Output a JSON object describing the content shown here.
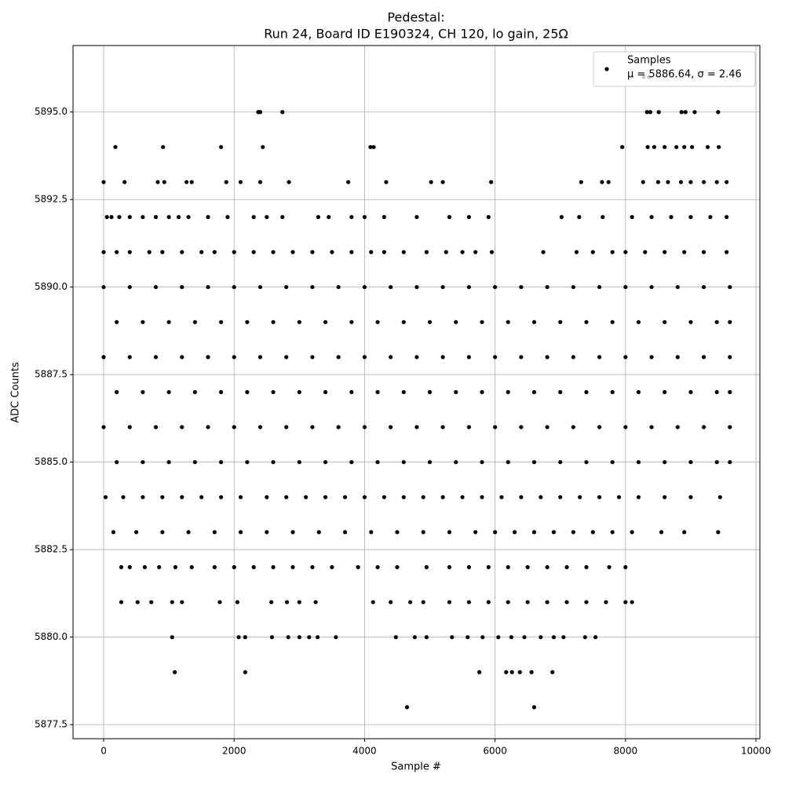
{
  "chart_data": {
    "type": "scatter",
    "title": "Pedestal:",
    "subtitle": "Run 24, Board ID E190324, CH 120, lo gain, 25Ω",
    "x_label": "Sample #",
    "y_label": "ADC Counts",
    "xlim": [
      -470,
      10060
    ],
    "ylim": [
      5877.1,
      5896.9
    ],
    "xticks": [
      0,
      2000,
      4000,
      6000,
      8000,
      10000
    ],
    "yticks": [
      5877.5,
      {
        "value": 5880,
        "label": "5880.0"
      },
      5882.5,
      {
        "value": 5885,
        "label": "5885.0"
      },
      5887.5,
      {
        "value": 5890,
        "label": "5890.0"
      },
      5892.5,
      {
        "value": 5895,
        "label": "5895.0"
      }
    ],
    "grid": true,
    "legend_position": "upper right",
    "legend_note": "μ = 5886.64, σ = 2.46",
    "series": [
      {
        "name": "Samples",
        "color": "#000000",
        "x": [
          8280,
          8360,
          2370,
          2400,
          2740,
          8330,
          8380,
          8510,
          8860,
          8920,
          9060,
          9420,
          180,
          910,
          1800,
          2440,
          4090,
          4140,
          7950,
          8340,
          8440,
          8600,
          8780,
          8900,
          9020,
          9260,
          9430,
          0,
          320,
          830,
          930,
          1270,
          1350,
          1880,
          2100,
          2400,
          2840,
          3750,
          4330,
          5020,
          5200,
          5940,
          7320,
          7640,
          7740,
          8270,
          8500,
          8650,
          8850,
          9000,
          9200,
          9400,
          9550,
          50,
          120,
          240,
          400,
          600,
          800,
          1000,
          1150,
          1300,
          1600,
          1900,
          2300,
          2500,
          2740,
          3290,
          3450,
          3800,
          4000,
          4300,
          4800,
          5300,
          5600,
          5900,
          7020,
          7290,
          7650,
          8100,
          8400,
          8700,
          9000,
          9300,
          9550,
          0,
          200,
          400,
          700,
          900,
          1200,
          1500,
          1700,
          2000,
          2300,
          2600,
          2900,
          3200,
          3500,
          3800,
          4100,
          4300,
          4600,
          4950,
          5250,
          5500,
          5700,
          5950,
          6740,
          7250,
          7500,
          7800,
          8000,
          8300,
          8600,
          8900,
          9200,
          9550,
          0,
          400,
          800,
          1200,
          1600,
          2000,
          2400,
          2800,
          3200,
          3600,
          4000,
          4400,
          4800,
          5200,
          5600,
          6000,
          6400,
          6800,
          7200,
          7600,
          8000,
          8400,
          8800,
          9200,
          9600,
          200,
          600,
          1000,
          1400,
          1800,
          2200,
          2600,
          3000,
          3400,
          3800,
          4200,
          4600,
          5000,
          5400,
          5800,
          6200,
          6600,
          7000,
          7400,
          7800,
          8200,
          8600,
          9000,
          9400,
          9600,
          0,
          400,
          800,
          1200,
          1600,
          2000,
          2400,
          2800,
          3200,
          3600,
          4000,
          4400,
          4800,
          5200,
          5600,
          6000,
          6400,
          6800,
          7200,
          7600,
          8000,
          8400,
          8800,
          9200,
          9600,
          200,
          600,
          1000,
          1400,
          1800,
          2200,
          2600,
          3000,
          3400,
          3800,
          4200,
          4600,
          5000,
          5400,
          5800,
          6200,
          6600,
          7000,
          7400,
          7800,
          8200,
          8600,
          9000,
          9400,
          9600,
          0,
          400,
          800,
          1200,
          1600,
          2000,
          2400,
          2800,
          3200,
          3600,
          4000,
          4400,
          4800,
          5200,
          5600,
          6000,
          6400,
          6800,
          7200,
          7600,
          8000,
          8400,
          8800,
          9200,
          9600,
          200,
          600,
          1000,
          1400,
          1800,
          2200,
          2600,
          3000,
          3400,
          3800,
          4200,
          4600,
          5000,
          5400,
          5800,
          6200,
          6600,
          7000,
          7400,
          7800,
          8200,
          8600,
          9000,
          9400,
          9600,
          30,
          300,
          600,
          900,
          1200,
          1500,
          1800,
          2100,
          2500,
          2800,
          3100,
          3400,
          3700,
          4000,
          4300,
          4600,
          4900,
          5200,
          5500,
          5800,
          6100,
          6400,
          6700,
          7000,
          7300,
          7600,
          7900,
          8200,
          8600,
          9000,
          9450,
          150,
          500,
          900,
          1300,
          1700,
          2100,
          2500,
          2900,
          3300,
          3700,
          4100,
          4500,
          4900,
          5300,
          5700,
          6000,
          6300,
          6600,
          6900,
          7200,
          7500,
          7800,
          8100,
          8550,
          8900,
          9420,
          270,
          400,
          630,
          850,
          1100,
          1350,
          1700,
          2000,
          2300,
          2600,
          2900,
          3200,
          3500,
          3900,
          4200,
          4500,
          4950,
          5300,
          5600,
          5900,
          6200,
          6500,
          6800,
          7100,
          7400,
          7750,
          8000,
          270,
          520,
          730,
          1050,
          1200,
          1780,
          2050,
          2570,
          2810,
          3000,
          3250,
          4130,
          4400,
          4700,
          4900,
          5300,
          5600,
          5900,
          6200,
          6500,
          6800,
          7100,
          7400,
          7700,
          8000,
          8100,
          1050,
          2070,
          2170,
          2580,
          2830,
          3000,
          3150,
          3280,
          3560,
          4480,
          4770,
          4950,
          5340,
          5580,
          5810,
          6050,
          6250,
          6450,
          6700,
          6900,
          7050,
          7380,
          7540,
          1090,
          2170,
          5760,
          6170,
          6260,
          6380,
          6560,
          6880,
          4650,
          6600
        ],
        "values": [
          5896,
          5896,
          5895,
          5895,
          5895,
          5895,
          5895,
          5895,
          5895,
          5895,
          5895,
          5895,
          5894,
          5894,
          5894,
          5894,
          5894,
          5894,
          5894,
          5894,
          5894,
          5894,
          5894,
          5894,
          5894,
          5894,
          5894,
          5893,
          5893,
          5893,
          5893,
          5893,
          5893,
          5893,
          5893,
          5893,
          5893,
          5893,
          5893,
          5893,
          5893,
          5893,
          5893,
          5893,
          5893,
          5893,
          5893,
          5893,
          5893,
          5893,
          5893,
          5893,
          5893,
          5892,
          5892,
          5892,
          5892,
          5892,
          5892,
          5892,
          5892,
          5892,
          5892,
          5892,
          5892,
          5892,
          5892,
          5892,
          5892,
          5892,
          5892,
          5892,
          5892,
          5892,
          5892,
          5892,
          5892,
          5892,
          5892,
          5892,
          5892,
          5892,
          5892,
          5892,
          5892,
          5891,
          5891,
          5891,
          5891,
          5891,
          5891,
          5891,
          5891,
          5891,
          5891,
          5891,
          5891,
          5891,
          5891,
          5891,
          5891,
          5891,
          5891,
          5891,
          5891,
          5891,
          5891,
          5891,
          5891,
          5891,
          5891,
          5891,
          5891,
          5891,
          5891,
          5891,
          5891,
          5891,
          5890,
          5890,
          5890,
          5890,
          5890,
          5890,
          5890,
          5890,
          5890,
          5890,
          5890,
          5890,
          5890,
          5890,
          5890,
          5890,
          5890,
          5890,
          5890,
          5890,
          5890,
          5890,
          5890,
          5890,
          5890,
          5889,
          5889,
          5889,
          5889,
          5889,
          5889,
          5889,
          5889,
          5889,
          5889,
          5889,
          5889,
          5889,
          5889,
          5889,
          5889,
          5889,
          5889,
          5889,
          5889,
          5889,
          5889,
          5889,
          5889,
          5889,
          5888,
          5888,
          5888,
          5888,
          5888,
          5888,
          5888,
          5888,
          5888,
          5888,
          5888,
          5888,
          5888,
          5888,
          5888,
          5888,
          5888,
          5888,
          5888,
          5888,
          5888,
          5888,
          5888,
          5888,
          5888,
          5887,
          5887,
          5887,
          5887,
          5887,
          5887,
          5887,
          5887,
          5887,
          5887,
          5887,
          5887,
          5887,
          5887,
          5887,
          5887,
          5887,
          5887,
          5887,
          5887,
          5887,
          5887,
          5887,
          5887,
          5887,
          5886,
          5886,
          5886,
          5886,
          5886,
          5886,
          5886,
          5886,
          5886,
          5886,
          5886,
          5886,
          5886,
          5886,
          5886,
          5886,
          5886,
          5886,
          5886,
          5886,
          5886,
          5886,
          5886,
          5886,
          5886,
          5885,
          5885,
          5885,
          5885,
          5885,
          5885,
          5885,
          5885,
          5885,
          5885,
          5885,
          5885,
          5885,
          5885,
          5885,
          5885,
          5885,
          5885,
          5885,
          5885,
          5885,
          5885,
          5885,
          5885,
          5885,
          5884,
          5884,
          5884,
          5884,
          5884,
          5884,
          5884,
          5884,
          5884,
          5884,
          5884,
          5884,
          5884,
          5884,
          5884,
          5884,
          5884,
          5884,
          5884,
          5884,
          5884,
          5884,
          5884,
          5884,
          5884,
          5884,
          5884,
          5884,
          5884,
          5884,
          5884,
          5883,
          5883,
          5883,
          5883,
          5883,
          5883,
          5883,
          5883,
          5883,
          5883,
          5883,
          5883,
          5883,
          5883,
          5883,
          5883,
          5883,
          5883,
          5883,
          5883,
          5883,
          5883,
          5883,
          5883,
          5883,
          5883,
          5882,
          5882,
          5882,
          5882,
          5882,
          5882,
          5882,
          5882,
          5882,
          5882,
          5882,
          5882,
          5882,
          5882,
          5882,
          5882,
          5882,
          5882,
          5882,
          5882,
          5882,
          5882,
          5882,
          5882,
          5882,
          5882,
          5882,
          5881,
          5881,
          5881,
          5881,
          5881,
          5881,
          5881,
          5881,
          5881,
          5881,
          5881,
          5881,
          5881,
          5881,
          5881,
          5881,
          5881,
          5881,
          5881,
          5881,
          5881,
          5881,
          5881,
          5881,
          5881,
          5881,
          5880,
          5880,
          5880,
          5880,
          5880,
          5880,
          5880,
          5880,
          5880,
          5880,
          5880,
          5880,
          5880,
          5880,
          5880,
          5880,
          5880,
          5880,
          5880,
          5880,
          5880,
          5880,
          5880,
          5879,
          5879,
          5879,
          5879,
          5879,
          5879,
          5879,
          5879,
          5878,
          5878
        ]
      }
    ]
  }
}
